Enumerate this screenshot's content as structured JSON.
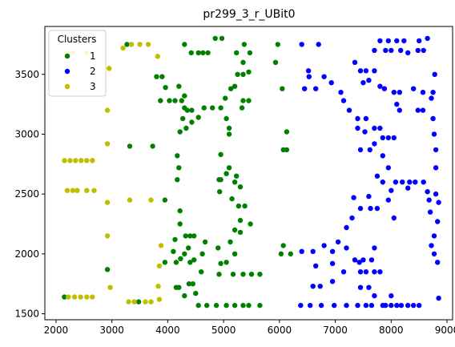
{
  "chart_data": {
    "type": "scatter",
    "title": "pr299_3_r_UBit0",
    "xlabel": "",
    "ylabel": "",
    "xlim": [
      1800,
      9100
    ],
    "ylim": [
      1450,
      3900
    ],
    "xticks": [
      2000,
      3000,
      4000,
      5000,
      6000,
      7000,
      8000,
      9000
    ],
    "yticks": [
      1500,
      2000,
      2500,
      3000,
      3500
    ],
    "grid": false,
    "legend": {
      "title": "Clusters",
      "placement": "top-left"
    },
    "series": [
      {
        "name": "1",
        "color": "#008000",
        "points": [
          [
            2150,
            1640
          ],
          [
            2920,
            1870
          ],
          [
            3320,
            2900
          ],
          [
            3270,
            3750
          ],
          [
            3480,
            1600
          ],
          [
            3730,
            2900
          ],
          [
            3800,
            3480
          ],
          [
            3870,
            3280
          ],
          [
            3900,
            3480
          ],
          [
            3960,
            3390
          ],
          [
            3950,
            2450
          ],
          [
            3950,
            1930
          ],
          [
            4030,
            3280
          ],
          [
            4200,
            3400
          ],
          [
            4130,
            3280
          ],
          [
            4250,
            3280
          ],
          [
            4300,
            3220
          ],
          [
            4270,
            3130
          ],
          [
            4220,
            3020
          ],
          [
            4170,
            2820
          ],
          [
            4200,
            2720
          ],
          [
            4170,
            2620
          ],
          [
            4220,
            2360
          ],
          [
            4220,
            2250
          ],
          [
            4130,
            2120
          ],
          [
            4100,
            2020
          ],
          [
            4150,
            1930
          ],
          [
            4230,
            1960
          ],
          [
            4320,
            2150
          ],
          [
            4370,
            2050
          ],
          [
            4400,
            2150
          ],
          [
            4470,
            2150
          ],
          [
            4300,
            2000
          ],
          [
            4200,
            1720
          ],
          [
            4300,
            1650
          ],
          [
            4380,
            1750
          ],
          [
            4450,
            1750
          ],
          [
            4500,
            1670
          ],
          [
            4470,
            1950
          ],
          [
            4550,
            1570
          ],
          [
            4700,
            1570
          ],
          [
            4870,
            1570
          ],
          [
            5050,
            1570
          ],
          [
            5200,
            1570
          ],
          [
            5350,
            1570
          ],
          [
            5450,
            1570
          ],
          [
            5650,
            1570
          ],
          [
            4300,
            3750
          ],
          [
            4420,
            3680
          ],
          [
            4550,
            3680
          ],
          [
            4630,
            3680
          ],
          [
            4720,
            3680
          ],
          [
            4850,
            3800
          ],
          [
            4970,
            3800
          ],
          [
            5230,
            3680
          ],
          [
            5370,
            3750
          ],
          [
            5470,
            3680
          ],
          [
            5350,
            3600
          ],
          [
            5350,
            3500
          ],
          [
            5250,
            3500
          ],
          [
            5200,
            3400
          ],
          [
            5130,
            3380
          ],
          [
            5030,
            3300
          ],
          [
            4950,
            3220
          ],
          [
            4800,
            3220
          ],
          [
            4650,
            3220
          ],
          [
            4550,
            3140
          ],
          [
            4430,
            3200
          ],
          [
            4350,
            3200
          ],
          [
            4430,
            3100
          ],
          [
            4330,
            3050
          ],
          [
            4300,
            3320
          ],
          [
            5450,
            3520
          ],
          [
            5350,
            3280
          ],
          [
            5450,
            3280
          ],
          [
            5330,
            3220
          ],
          [
            5050,
            3130
          ],
          [
            5100,
            3050
          ],
          [
            5100,
            3000
          ],
          [
            4950,
            2830
          ],
          [
            5100,
            2720
          ],
          [
            4920,
            2620
          ],
          [
            5050,
            2670
          ],
          [
            5200,
            2600
          ],
          [
            5230,
            2650
          ],
          [
            5300,
            2560
          ],
          [
            4930,
            2520
          ],
          [
            4950,
            2620
          ],
          [
            5150,
            2460
          ],
          [
            5270,
            2400
          ],
          [
            5380,
            2400
          ],
          [
            5300,
            2280
          ],
          [
            5200,
            2200
          ],
          [
            5300,
            2180
          ],
          [
            5480,
            2250
          ],
          [
            5120,
            2100
          ],
          [
            5200,
            2000
          ],
          [
            4950,
            1920
          ],
          [
            5050,
            1930
          ],
          [
            4900,
            2050
          ],
          [
            4920,
            1830
          ],
          [
            5170,
            1830
          ],
          [
            5350,
            1830
          ],
          [
            5500,
            1830
          ],
          [
            5650,
            1830
          ],
          [
            4670,
            2100
          ],
          [
            4620,
            2000
          ],
          [
            4600,
            1850
          ],
          [
            5970,
            3750
          ],
          [
            6050,
            3380
          ],
          [
            5930,
            3600
          ],
          [
            6130,
            3020
          ],
          [
            6070,
            2870
          ],
          [
            6130,
            2870
          ],
          [
            6070,
            2070
          ],
          [
            6030,
            2000
          ],
          [
            6200,
            2000
          ],
          [
            4400,
            1930
          ],
          [
            4150,
            1720
          ]
        ]
      },
      {
        "name": "2",
        "color": "#0000ff",
        "points": [
          [
            6400,
            3750
          ],
          [
            6700,
            3750
          ],
          [
            6520,
            3530
          ],
          [
            6450,
            3380
          ],
          [
            6530,
            3480
          ],
          [
            6650,
            3380
          ],
          [
            6800,
            3480
          ],
          [
            6930,
            3430
          ],
          [
            7100,
            3350
          ],
          [
            7150,
            3280
          ],
          [
            7250,
            3200
          ],
          [
            7400,
            3130
          ],
          [
            7550,
            3130
          ],
          [
            7400,
            3050
          ],
          [
            7530,
            3020
          ],
          [
            7450,
            2870
          ],
          [
            7620,
            2870
          ],
          [
            7700,
            3050
          ],
          [
            7800,
            3050
          ],
          [
            7700,
            2920
          ],
          [
            7850,
            2970
          ],
          [
            7750,
            2650
          ],
          [
            7850,
            2820
          ],
          [
            7950,
            2970
          ],
          [
            8050,
            2970
          ],
          [
            7950,
            2720
          ],
          [
            7850,
            2600
          ],
          [
            8000,
            2530
          ],
          [
            8080,
            2600
          ],
          [
            8200,
            2600
          ],
          [
            8330,
            2600
          ],
          [
            8430,
            2600
          ],
          [
            8300,
            2550
          ],
          [
            8580,
            2600
          ],
          [
            8650,
            2520
          ],
          [
            8800,
            2500
          ],
          [
            8680,
            2450
          ],
          [
            8850,
            2430
          ],
          [
            8700,
            2350
          ],
          [
            8830,
            2270
          ],
          [
            8770,
            2150
          ],
          [
            8720,
            2070
          ],
          [
            8770,
            2000
          ],
          [
            8830,
            1930
          ],
          [
            8850,
            1630
          ],
          [
            7800,
            3780
          ],
          [
            7950,
            3780
          ],
          [
            8100,
            3780
          ],
          [
            8230,
            3780
          ],
          [
            8500,
            3780
          ],
          [
            8650,
            3800
          ],
          [
            7700,
            3700
          ],
          [
            7900,
            3700
          ],
          [
            8000,
            3700
          ],
          [
            8170,
            3700
          ],
          [
            8300,
            3680
          ],
          [
            8480,
            3700
          ],
          [
            8580,
            3700
          ],
          [
            7350,
            3600
          ],
          [
            7450,
            3530
          ],
          [
            7550,
            3530
          ],
          [
            7700,
            3530
          ],
          [
            7600,
            3450
          ],
          [
            7500,
            3430
          ],
          [
            7800,
            3400
          ],
          [
            7880,
            3380
          ],
          [
            8050,
            3350
          ],
          [
            8100,
            3250
          ],
          [
            8150,
            3350
          ],
          [
            8150,
            3200
          ],
          [
            8480,
            3200
          ],
          [
            8570,
            3200
          ],
          [
            8400,
            3380
          ],
          [
            8750,
            3130
          ],
          [
            8570,
            3350
          ],
          [
            8750,
            3350
          ],
          [
            8780,
            3500
          ],
          [
            8770,
            3000
          ],
          [
            8800,
            2870
          ],
          [
            8800,
            2720
          ],
          [
            8720,
            3300
          ],
          [
            7450,
            2380
          ],
          [
            7330,
            2470
          ],
          [
            7600,
            2480
          ],
          [
            7630,
            2380
          ],
          [
            7750,
            2380
          ],
          [
            7950,
            2450
          ],
          [
            8050,
            2300
          ],
          [
            7300,
            2300
          ],
          [
            7200,
            2220
          ],
          [
            7200,
            2050
          ],
          [
            7050,
            2100
          ],
          [
            6950,
            2020
          ],
          [
            6800,
            2070
          ],
          [
            6600,
            2020
          ],
          [
            6400,
            2020
          ],
          [
            6650,
            1900
          ],
          [
            6950,
            1920
          ],
          [
            7350,
            1950
          ],
          [
            7430,
            1930
          ],
          [
            7500,
            1950
          ],
          [
            7650,
            1950
          ],
          [
            7700,
            2050
          ],
          [
            7550,
            1850
          ],
          [
            7450,
            1850
          ],
          [
            7150,
            1850
          ],
          [
            6950,
            1770
          ],
          [
            6730,
            1730
          ],
          [
            6600,
            1730
          ],
          [
            7450,
            1720
          ],
          [
            7600,
            1720
          ],
          [
            7700,
            1650
          ],
          [
            8000,
            1650
          ],
          [
            6380,
            1570
          ],
          [
            6550,
            1570
          ],
          [
            6750,
            1570
          ],
          [
            6980,
            1570
          ],
          [
            7200,
            1570
          ],
          [
            7400,
            1570
          ],
          [
            7550,
            1570
          ],
          [
            7650,
            1570
          ],
          [
            7850,
            1570
          ],
          [
            7900,
            1570
          ],
          [
            8000,
            1570
          ],
          [
            8100,
            1570
          ],
          [
            8180,
            1570
          ],
          [
            8300,
            1570
          ],
          [
            8400,
            1570
          ],
          [
            8500,
            1570
          ],
          [
            7800,
            1850
          ],
          [
            7700,
            1850
          ]
        ]
      },
      {
        "name": "3",
        "color": "#bfbf00",
        "points": [
          [
            2200,
            3680
          ],
          [
            2300,
            3680
          ],
          [
            2550,
            3680
          ],
          [
            2150,
            2780
          ],
          [
            2250,
            2780
          ],
          [
            2350,
            2780
          ],
          [
            2450,
            2780
          ],
          [
            2550,
            2780
          ],
          [
            2650,
            2780
          ],
          [
            2200,
            2530
          ],
          [
            2300,
            2530
          ],
          [
            2380,
            2530
          ],
          [
            2550,
            2530
          ],
          [
            2680,
            2530
          ],
          [
            2220,
            1640
          ],
          [
            2330,
            1640
          ],
          [
            2440,
            1640
          ],
          [
            2550,
            1640
          ],
          [
            2650,
            1640
          ],
          [
            2950,
            3550
          ],
          [
            2920,
            3200
          ],
          [
            2920,
            2920
          ],
          [
            2920,
            2430
          ],
          [
            2920,
            2150
          ],
          [
            2970,
            1720
          ],
          [
            3200,
            3720
          ],
          [
            3350,
            3750
          ],
          [
            3500,
            3750
          ],
          [
            3650,
            3750
          ],
          [
            3820,
            3650
          ],
          [
            3320,
            2450
          ],
          [
            3700,
            2450
          ],
          [
            3300,
            1600
          ],
          [
            3400,
            1600
          ],
          [
            3600,
            1600
          ],
          [
            3700,
            1600
          ],
          [
            3880,
            2070
          ],
          [
            3850,
            1900
          ],
          [
            3830,
            1730
          ],
          [
            3850,
            1620
          ]
        ]
      }
    ]
  }
}
